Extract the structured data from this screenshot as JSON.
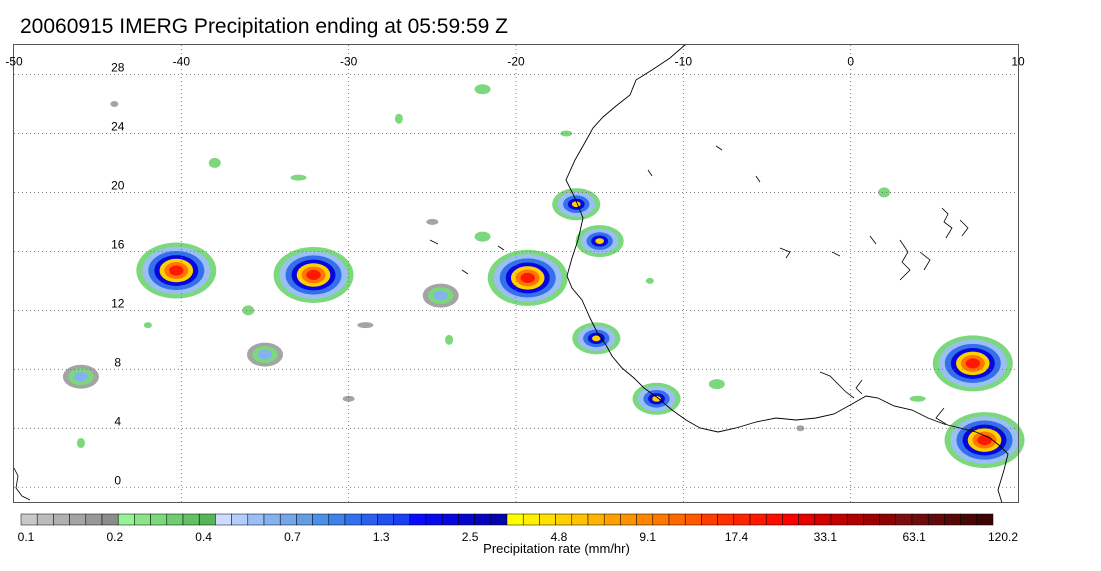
{
  "title": "20060915 IMERG Precipitation ending at 05:59:59 Z",
  "map": {
    "lon_range": [
      -50,
      10
    ],
    "lat_range": [
      -1,
      30
    ],
    "lon_ticks": [
      {
        "value": -50,
        "label": "-50"
      },
      {
        "value": -40,
        "label": "-40"
      },
      {
        "value": -30,
        "label": "-30"
      },
      {
        "value": -20,
        "label": "-20"
      },
      {
        "value": -10,
        "label": "-10"
      },
      {
        "value": 0,
        "label": "0"
      },
      {
        "value": 10,
        "label": "10"
      }
    ],
    "lat_ticks": [
      {
        "value": 0,
        "label": "0"
      },
      {
        "value": 4,
        "label": "4"
      },
      {
        "value": 8,
        "label": "8"
      },
      {
        "value": 12,
        "label": "12"
      },
      {
        "value": 16,
        "label": "16"
      },
      {
        "value": 20,
        "label": "20"
      },
      {
        "value": 24,
        "label": "24"
      },
      {
        "value": 28,
        "label": "28"
      }
    ],
    "grid": "dotted",
    "coastline_color": "#000000"
  },
  "colorbar": {
    "label": "Precipitation rate (mm/hr)",
    "tick_labels": [
      "0.1",
      "0.2",
      "0.4",
      "0.7",
      "1.3",
      "2.5",
      "4.8",
      "9.1",
      "17.4",
      "33.1",
      "63.1",
      "120.2"
    ],
    "groups": [
      {
        "name": "gray",
        "colors": [
          "#c8c8c8",
          "#bcbcbc",
          "#b0b0b0",
          "#a4a4a4",
          "#989898",
          "#8c8c8c"
        ]
      },
      {
        "name": "green",
        "colors": [
          "#98f098",
          "#8ae48a",
          "#7cd87c",
          "#70cc70",
          "#64c064",
          "#58b458"
        ]
      },
      {
        "name": "light-blue",
        "colors": [
          "#d0dcff",
          "#b4cdfa",
          "#9bbef4",
          "#85b2ef",
          "#74a6ea",
          "#659ce4"
        ]
      },
      {
        "name": "blue",
        "colors": [
          "#4a90e8",
          "#3f80ea",
          "#3570ec",
          "#2b60ef",
          "#2150f1",
          "#1a40f3"
        ]
      },
      {
        "name": "dark-blue",
        "colors": [
          "#0a0aff",
          "#0808ee",
          "#0606de",
          "#0505ce",
          "#0404bf",
          "#0303b0"
        ]
      },
      {
        "name": "yellow",
        "colors": [
          "#ffff00",
          "#ffef00",
          "#ffe000",
          "#ffd000",
          "#ffc100",
          "#ffb200"
        ]
      },
      {
        "name": "orange",
        "colors": [
          "#ffa000",
          "#ff9200",
          "#ff8400",
          "#ff7600",
          "#ff6800",
          "#ff5a00"
        ]
      },
      {
        "name": "red",
        "colors": [
          "#ff3c00",
          "#ff3000",
          "#ff2400",
          "#ff1800",
          "#ff0c00",
          "#ff0000"
        ]
      },
      {
        "name": "dark-red",
        "colors": [
          "#e60000",
          "#d40000",
          "#c20000",
          "#b00000",
          "#9e0000",
          "#8c0000"
        ]
      },
      {
        "name": "maroon",
        "colors": [
          "#7a0e0e",
          "#6e0c0c",
          "#620a0a",
          "#560808",
          "#4a0606",
          "#3e0404"
        ]
      }
    ]
  },
  "precipitation_systems": [
    {
      "lon": -40.3,
      "lat": 14.7,
      "intensity": "heavy"
    },
    {
      "lon": -32.1,
      "lat": 14.4,
      "intensity": "heavy"
    },
    {
      "lon": -19.3,
      "lat": 14.2,
      "intensity": "heavy"
    },
    {
      "lon": -16.4,
      "lat": 19.2,
      "intensity": "moderate"
    },
    {
      "lon": -15.0,
      "lat": 16.7,
      "intensity": "moderate"
    },
    {
      "lon": -15.2,
      "lat": 10.1,
      "intensity": "moderate"
    },
    {
      "lon": -11.6,
      "lat": 6.0,
      "intensity": "moderate"
    },
    {
      "lon": 7.3,
      "lat": 8.4,
      "intensity": "heavy"
    },
    {
      "lon": 8.0,
      "lat": 3.2,
      "intensity": "heavy"
    },
    {
      "lon": -35.0,
      "lat": 9.0,
      "intensity": "light"
    },
    {
      "lon": -46.0,
      "lat": 7.5,
      "intensity": "light"
    },
    {
      "lon": -24.5,
      "lat": 13.0,
      "intensity": "light"
    }
  ]
}
